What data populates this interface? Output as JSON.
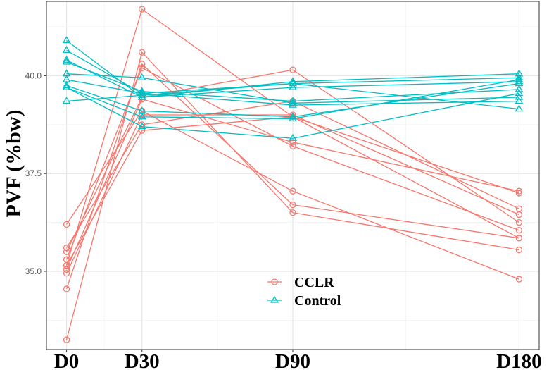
{
  "chart_data": {
    "type": "line",
    "title": "",
    "xlabel": "",
    "ylabel": "PVF (%bw)",
    "x_categories": [
      "D0",
      "D30",
      "D90",
      "D180"
    ],
    "x_days": [
      0,
      30,
      90,
      180
    ],
    "x_range": [
      -8,
      188
    ],
    "ylim": [
      33.0,
      41.9
    ],
    "yticks": [
      35.0,
      37.5,
      40.0
    ],
    "ytick_labels": [
      "35.0",
      "37.5",
      "40.0"
    ],
    "grid": true,
    "legend_position": "bottom-center",
    "series": [
      {
        "name": "CCLR",
        "color": "#F8766D",
        "marker": "circle",
        "lines": [
          [
            35.15,
            41.7,
            38.95,
            37.0
          ],
          [
            33.25,
            40.6,
            36.5,
            35.55
          ],
          [
            34.55,
            40.3,
            36.7,
            35.85
          ],
          [
            35.3,
            40.2,
            38.2,
            36.05
          ],
          [
            35.5,
            39.45,
            40.15,
            36.25
          ],
          [
            36.2,
            39.1,
            37.05,
            34.8
          ],
          [
            34.95,
            39.0,
            39.0,
            36.45
          ],
          [
            35.6,
            38.75,
            39.35,
            36.6
          ],
          [
            35.15,
            38.6,
            38.95,
            35.85
          ],
          [
            35.05,
            39.4,
            38.3,
            37.05
          ]
        ]
      },
      {
        "name": "Control",
        "color": "#00BFC4",
        "marker": "triangle",
        "lines": [
          [
            40.9,
            39.45,
            39.85,
            40.05
          ],
          [
            40.65,
            39.55,
            39.8,
            39.95
          ],
          [
            40.4,
            39.45,
            39.7,
            39.85
          ],
          [
            40.35,
            39.6,
            39.35,
            39.65
          ],
          [
            40.05,
            39.95,
            39.3,
            39.45
          ],
          [
            39.9,
            39.55,
            39.25,
            39.35
          ],
          [
            39.75,
            39.1,
            38.95,
            39.8
          ],
          [
            39.7,
            38.95,
            38.9,
            39.9
          ],
          [
            39.7,
            38.7,
            38.4,
            39.55
          ],
          [
            39.35,
            39.5,
            39.8,
            39.15
          ]
        ]
      }
    ]
  }
}
